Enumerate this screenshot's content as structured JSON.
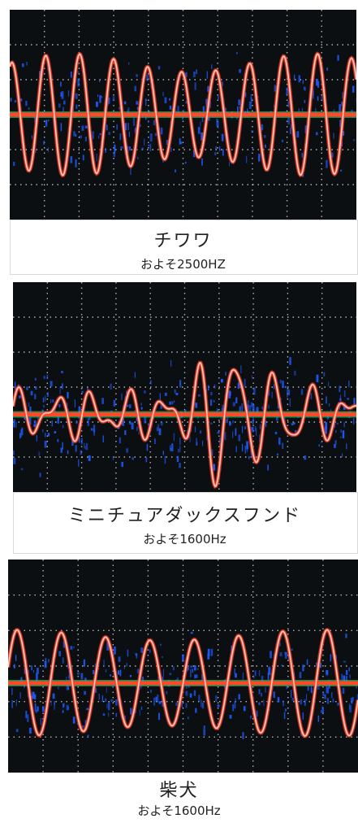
{
  "panels": [
    {
      "title": "チワワ",
      "freq": "およそ2500HZ"
    },
    {
      "title": "ミニチュアダックスフンド",
      "freq": "およそ1600Hz"
    },
    {
      "title": "柴犬",
      "freq": "およそ1600Hz"
    }
  ],
  "colors": {
    "screen": "#0b0f12",
    "grid": "#e8e8e8",
    "trace_core": "#ffd9d0",
    "trace_mid": "#ff5a3c",
    "noise": "#1e5bff",
    "baseline": "#ff4a2a"
  }
}
